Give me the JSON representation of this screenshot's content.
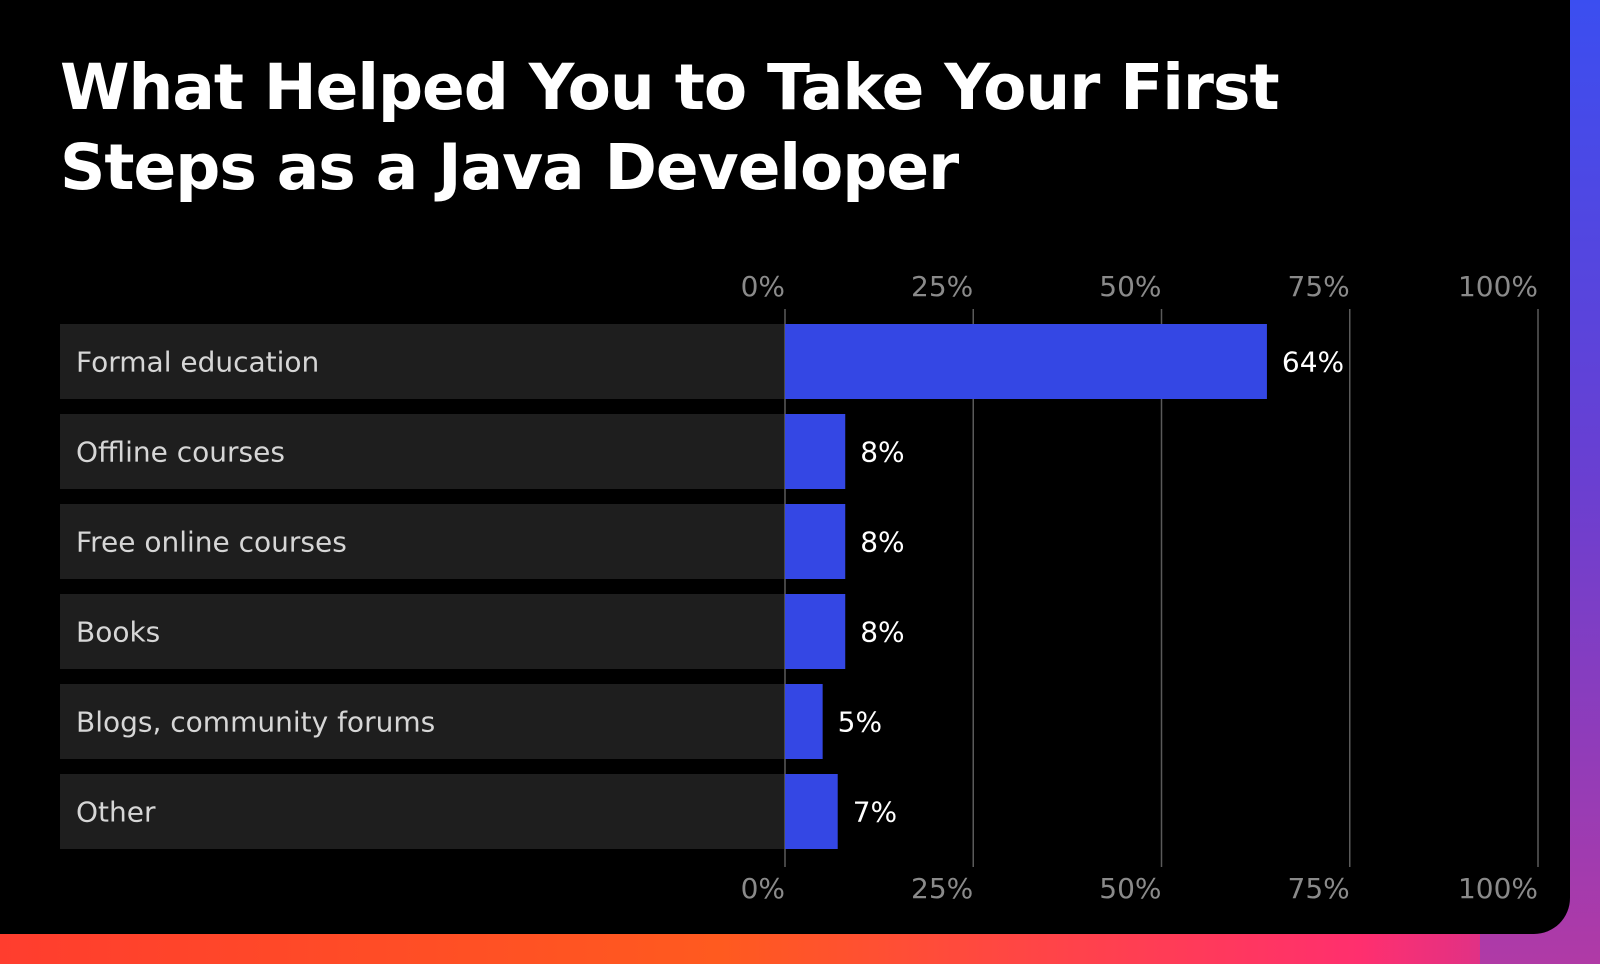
{
  "chart_data": {
    "type": "bar",
    "orientation": "horizontal",
    "title": "What Helped You to Take Your First Steps as a Java Developer",
    "categories": [
      "Formal education",
      "Offline courses",
      "Free online courses",
      "Books",
      "Blogs, community forums",
      "Other"
    ],
    "values": [
      64,
      8,
      8,
      8,
      5,
      7
    ],
    "value_labels": [
      "64%",
      "8%",
      "8%",
      "8%",
      "5%",
      "7%"
    ],
    "xlim": [
      0,
      100
    ],
    "xticks": [
      0,
      25,
      50,
      75,
      100
    ],
    "xtick_labels": [
      "0%",
      "25%",
      "50%",
      "75%",
      "100%"
    ],
    "grid": true,
    "bar_color": "#3447e4",
    "row_background": "#1e1e1e"
  }
}
